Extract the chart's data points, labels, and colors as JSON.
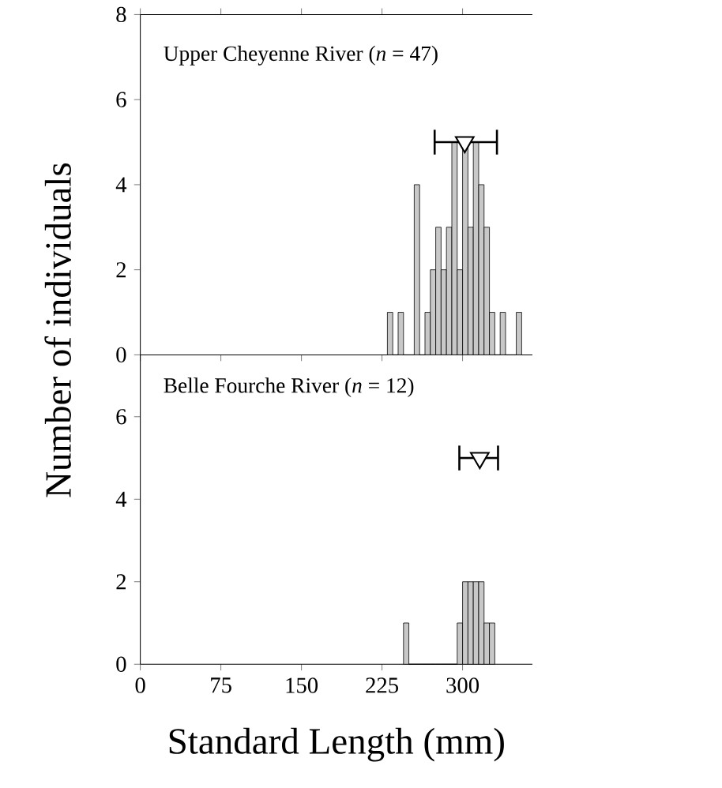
{
  "chart_data": [
    {
      "type": "histogram",
      "ylabel": "Number of individuals",
      "annotations": [
        "Upper Cheyenne River (*n* = 47)"
      ],
      "xlim": [
        0,
        365
      ],
      "xticks": [
        0,
        75,
        150,
        225,
        300
      ],
      "ylim": [
        0,
        8
      ],
      "yticks": [
        0,
        2,
        4,
        6,
        8
      ],
      "tick_labels": "y",
      "grid": false,
      "series": [
        {
          "color": "#c8c8c8",
          "bins": [
            230,
            235,
            240,
            245,
            250,
            255,
            260,
            265,
            270,
            275,
            280,
            285,
            290,
            295,
            300,
            305,
            310,
            315,
            320,
            325,
            330,
            335,
            340,
            345,
            350,
            355
          ],
          "values": [
            1,
            0,
            1,
            0,
            0,
            4,
            0,
            1,
            2,
            3,
            2,
            3,
            5,
            2,
            5,
            3,
            5,
            4,
            3,
            1,
            0,
            1,
            0,
            0,
            1
          ]
        },
        {
          "type": "scatter",
          "color": "#ffffff",
          "marker": "triangle",
          "x": [
            302
          ],
          "values": [
            5
          ],
          "xerrors": [
            [
              274,
              332
            ]
          ]
        }
      ]
    },
    {
      "type": "histogram",
      "xlabel": "Standard Length (mm)",
      "annotations": [
        "Belle Fourche River (*n* = 12)"
      ],
      "xlim": [
        0,
        365
      ],
      "xticks": [
        0,
        75,
        150,
        225,
        300
      ],
      "ylim": [
        0,
        7.5
      ],
      "yticks": [
        0,
        2,
        4,
        6
      ],
      "grid": false,
      "series": [
        {
          "color": "#c8c8c8",
          "bins": [
            245,
            250,
            255,
            260,
            265,
            270,
            275,
            280,
            285,
            290,
            295,
            300,
            305,
            310,
            315,
            320,
            325,
            330
          ],
          "values": [
            1,
            0,
            0,
            0,
            0,
            0,
            0,
            0,
            0,
            0,
            1,
            2,
            2,
            2,
            2,
            1,
            1
          ]
        },
        {
          "type": "scatter",
          "color": "#ffffff",
          "marker": "triangle",
          "x": [
            316
          ],
          "values": [
            5
          ],
          "xerrors": [
            [
              297,
              333
            ]
          ]
        }
      ]
    }
  ]
}
